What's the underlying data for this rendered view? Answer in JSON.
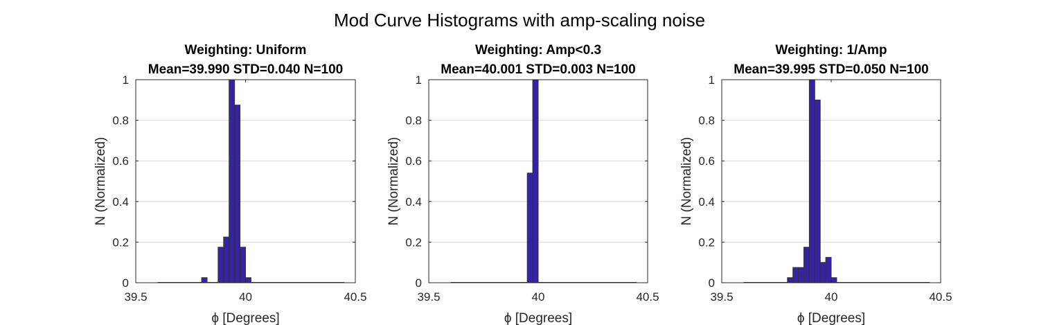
{
  "figure": {
    "title": "Mod Curve Histograms with amp-scaling noise"
  },
  "colors": {
    "bar_fill": "#3422a8",
    "bar_edge": "#333333",
    "grid": "#dcdcdc",
    "axis": "#262626"
  },
  "chart_data": [
    {
      "type": "bar",
      "title": "Weighting: Uniform",
      "subtitle": "Mean=39.990 STD=0.040 N=100",
      "xlabel": "ϕ [Degrees]",
      "ylabel": "N (Normalized)",
      "xlim": [
        39.5,
        40.5
      ],
      "ylim": [
        0,
        1
      ],
      "xticks": [
        39.5,
        40,
        40.5
      ],
      "xtick_labels": [
        "39.5",
        "40",
        "40.5"
      ],
      "yticks": [
        0,
        0.2,
        0.4,
        0.6,
        0.8,
        1
      ],
      "ytick_labels": [
        "0",
        "0.2",
        "0.4",
        "0.6",
        "0.8",
        "1"
      ],
      "grid": "y",
      "bin_edges": [
        39.6,
        39.625,
        39.65,
        39.675,
        39.7,
        39.725,
        39.75,
        39.775,
        39.8,
        39.825,
        39.85,
        39.875,
        39.9,
        39.925,
        39.95,
        39.975,
        40.0,
        40.025,
        40.05,
        40.075,
        40.1,
        40.125,
        40.15,
        40.175,
        40.2,
        40.225,
        40.25,
        40.275,
        40.3,
        40.325,
        40.35,
        40.375,
        40.4,
        40.425,
        40.45
      ],
      "values": [
        0,
        0,
        0,
        0,
        0,
        0,
        0,
        0,
        0.025,
        0,
        0,
        0.175,
        0.225,
        1.0,
        0.875,
        0.175,
        0.025,
        0,
        0,
        0,
        0,
        0,
        0,
        0,
        0,
        0,
        0,
        0,
        0,
        0,
        0,
        0,
        0,
        0
      ]
    },
    {
      "type": "bar",
      "title": "Weighting: Amp<0.3",
      "subtitle": "Mean=40.001 STD=0.003 N=100",
      "xlabel": "ϕ [Degrees]",
      "ylabel": "N (Normalized)",
      "xlim": [
        39.5,
        40.5
      ],
      "ylim": [
        0,
        1
      ],
      "xticks": [
        39.5,
        40,
        40.5
      ],
      "xtick_labels": [
        "39.5",
        "40",
        "40.5"
      ],
      "yticks": [
        0,
        0.2,
        0.4,
        0.6,
        0.8,
        1
      ],
      "ytick_labels": [
        "0",
        "0.2",
        "0.4",
        "0.6",
        "0.8",
        "1"
      ],
      "grid": "y",
      "bin_edges": [
        39.6,
        39.625,
        39.65,
        39.675,
        39.7,
        39.725,
        39.75,
        39.775,
        39.8,
        39.825,
        39.85,
        39.875,
        39.9,
        39.925,
        39.95,
        39.975,
        40.0,
        40.025,
        40.05,
        40.075,
        40.1,
        40.125,
        40.15,
        40.175,
        40.2,
        40.225,
        40.25,
        40.275,
        40.3,
        40.325,
        40.35,
        40.375,
        40.4,
        40.425,
        40.45
      ],
      "values": [
        0,
        0,
        0,
        0,
        0,
        0,
        0,
        0,
        0,
        0,
        0,
        0,
        0,
        0,
        0.54,
        1.0,
        0,
        0,
        0,
        0,
        0,
        0,
        0,
        0,
        0,
        0,
        0,
        0,
        0,
        0,
        0,
        0,
        0,
        0
      ]
    },
    {
      "type": "bar",
      "title": "Weighting: 1/Amp",
      "subtitle": "Mean=39.995 STD=0.050 N=100",
      "xlabel": "ϕ [Degrees]",
      "ylabel": "N (Normalized)",
      "xlim": [
        39.5,
        40.5
      ],
      "ylim": [
        0,
        1
      ],
      "xticks": [
        39.5,
        40,
        40.5
      ],
      "xtick_labels": [
        "39.5",
        "40",
        "40.5"
      ],
      "yticks": [
        0,
        0.2,
        0.4,
        0.6,
        0.8,
        1
      ],
      "ytick_labels": [
        "0",
        "0.2",
        "0.4",
        "0.6",
        "0.8",
        "1"
      ],
      "grid": "y",
      "bin_edges": [
        39.6,
        39.625,
        39.65,
        39.675,
        39.7,
        39.725,
        39.75,
        39.775,
        39.8,
        39.825,
        39.85,
        39.875,
        39.9,
        39.925,
        39.95,
        39.975,
        40.0,
        40.025,
        40.05,
        40.075,
        40.1,
        40.125,
        40.15,
        40.175,
        40.2,
        40.225,
        40.25,
        40.275,
        40.3,
        40.325,
        40.35,
        40.375,
        40.4,
        40.425,
        40.45
      ],
      "values": [
        0,
        0,
        0,
        0,
        0,
        0,
        0,
        0,
        0.025,
        0.075,
        0.075,
        0.175,
        1.0,
        0.9,
        0.1,
        0.125,
        0.025,
        0,
        0,
        0,
        0,
        0,
        0,
        0,
        0,
        0,
        0,
        0,
        0,
        0,
        0,
        0,
        0,
        0
      ]
    }
  ]
}
